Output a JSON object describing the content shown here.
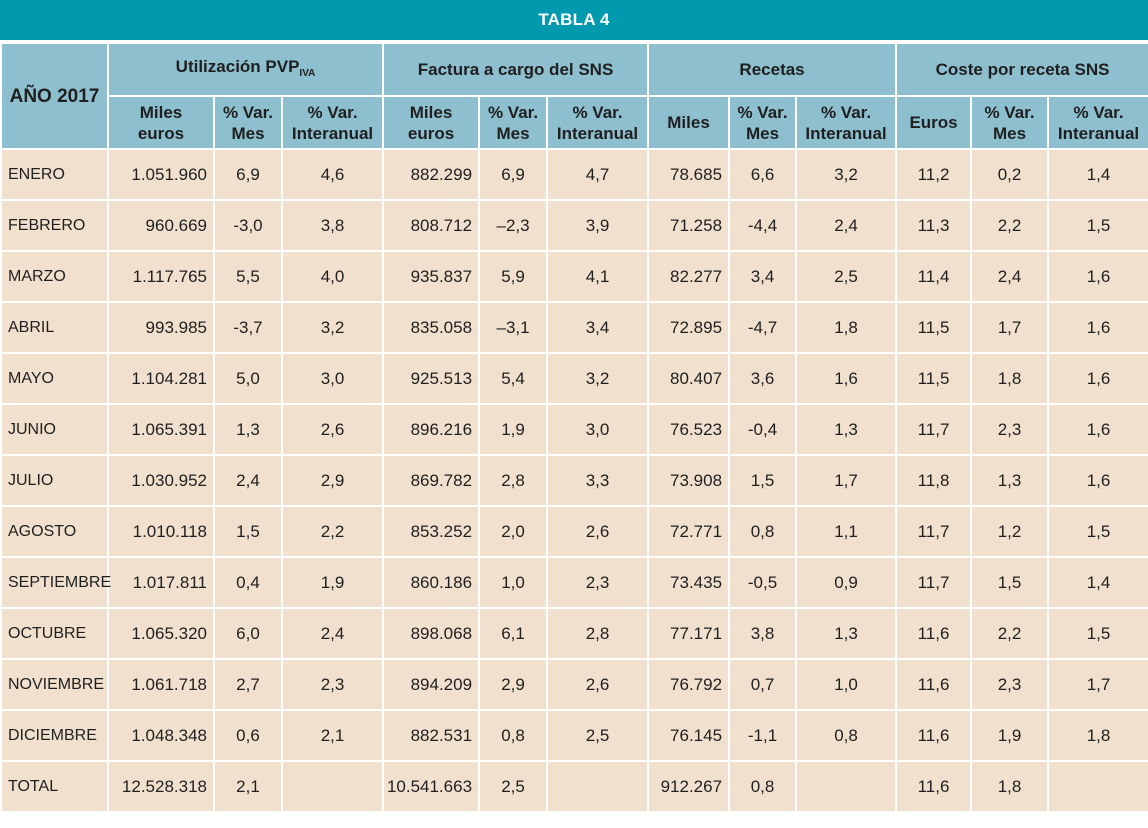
{
  "title": "TABLA 4",
  "header": {
    "year_label": "AÑO 2017",
    "groups": [
      {
        "label": "Utilización PVP",
        "subscript": "IVA"
      },
      {
        "label": "Factura a cargo del SNS"
      },
      {
        "label": "Recetas"
      },
      {
        "label": "Coste por receta SNS"
      }
    ],
    "subcolumns": [
      [
        "Miles",
        "euros"
      ],
      [
        "% Var.",
        "Mes"
      ],
      [
        "% Var.",
        "Interanual"
      ],
      [
        "Miles",
        "euros"
      ],
      [
        "% Var.",
        "Mes"
      ],
      [
        "% Var.",
        "Interanual"
      ],
      [
        "Miles"
      ],
      [
        "% Var.",
        "Mes"
      ],
      [
        "% Var.",
        "Interanual"
      ],
      [
        "Euros"
      ],
      [
        "% Var.",
        "Mes"
      ],
      [
        "% Var.",
        "Interanual"
      ]
    ]
  },
  "rows": [
    {
      "month": "ENERO",
      "values": [
        "1.051.960",
        "6,9",
        "4,6",
        "882.299",
        "6,9",
        "4,7",
        "78.685",
        "6,6",
        "3,2",
        "11,2",
        "0,2",
        "1,4"
      ]
    },
    {
      "month": "FEBRERO",
      "values": [
        "960.669",
        "-3,0",
        "3,8",
        "808.712",
        "–2,3",
        "3,9",
        "71.258",
        "-4,4",
        "2,4",
        "11,3",
        "2,2",
        "1,5"
      ]
    },
    {
      "month": "MARZO",
      "values": [
        "1.117.765",
        "5,5",
        "4,0",
        "935.837",
        "5,9",
        "4,1",
        "82.277",
        "3,4",
        "2,5",
        "11,4",
        "2,4",
        "1,6"
      ]
    },
    {
      "month": "ABRIL",
      "values": [
        "993.985",
        "-3,7",
        "3,2",
        "835.058",
        "–3,1",
        "3,4",
        "72.895",
        "-4,7",
        "1,8",
        "11,5",
        "1,7",
        "1,6"
      ]
    },
    {
      "month": "MAYO",
      "values": [
        "1.104.281",
        "5,0",
        "3,0",
        "925.513",
        "5,4",
        "3,2",
        "80.407",
        "3,6",
        "1,6",
        "11,5",
        "1,8",
        "1,6"
      ]
    },
    {
      "month": "JUNIO",
      "values": [
        "1.065.391",
        "1,3",
        "2,6",
        "896.216",
        "1,9",
        "3,0",
        "76.523",
        "-0,4",
        "1,3",
        "11,7",
        "2,3",
        "1,6"
      ]
    },
    {
      "month": "JULIO",
      "values": [
        "1.030.952",
        "2,4",
        "2,9",
        "869.782",
        "2,8",
        "3,3",
        "73.908",
        "1,5",
        "1,7",
        "11,8",
        "1,3",
        "1,6"
      ]
    },
    {
      "month": "AGOSTO",
      "values": [
        "1.010.118",
        "1,5",
        "2,2",
        "853.252",
        "2,0",
        "2,6",
        "72.771",
        "0,8",
        "1,1",
        "11,7",
        "1,2",
        "1,5"
      ]
    },
    {
      "month": "SEPTIEMBRE",
      "values": [
        "1.017.811",
        "0,4",
        "1,9",
        "860.186",
        "1,0",
        "2,3",
        "73.435",
        "-0,5",
        "0,9",
        "11,7",
        "1,5",
        "1,4"
      ]
    },
    {
      "month": "OCTUBRE",
      "values": [
        "1.065.320",
        "6,0",
        "2,4",
        "898.068",
        "6,1",
        "2,8",
        "77.171",
        "3,8",
        "1,3",
        "11,6",
        "2,2",
        "1,5"
      ]
    },
    {
      "month": "NOVIEMBRE",
      "values": [
        "1.061.718",
        "2,7",
        "2,3",
        "894.209",
        "2,9",
        "2,6",
        "76.792",
        "0,7",
        "1,0",
        "11,6",
        "2,3",
        "1,7"
      ]
    },
    {
      "month": "DICIEMBRE",
      "values": [
        "1.048.348",
        "0,6",
        "2,1",
        "882.531",
        "0,8",
        "2,5",
        "76.145",
        "-1,1",
        "0,8",
        "11,6",
        "1,9",
        "1,8"
      ]
    },
    {
      "month": "TOTAL",
      "values": [
        "12.528.318",
        "2,1",
        "",
        "10.541.663",
        "2,5",
        "",
        "912.267",
        "0,8",
        "",
        "11,6",
        "1,8",
        ""
      ]
    }
  ],
  "colors": {
    "title_bg": "#0099ae",
    "header_bg": "#8dbfcf",
    "cell_bg": "#f1e0cd",
    "grid": "#ffffff"
  }
}
